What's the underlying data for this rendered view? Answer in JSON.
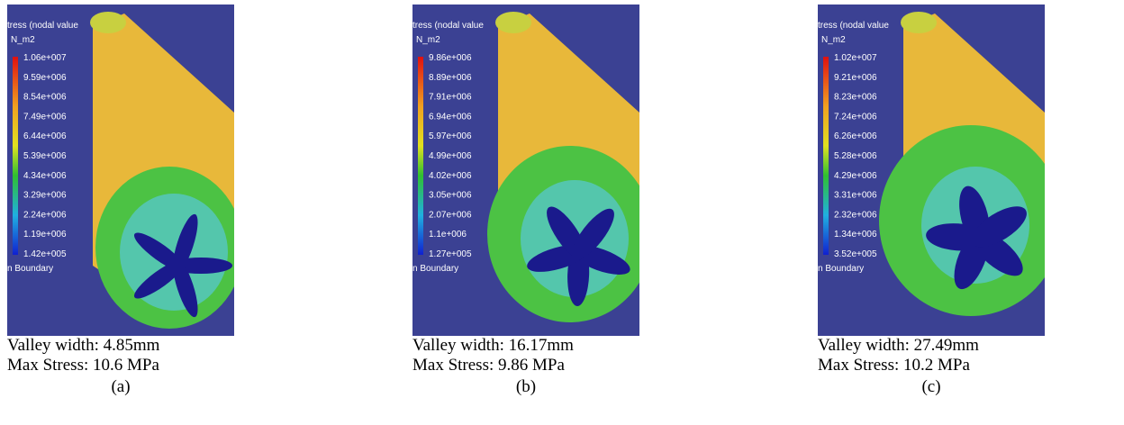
{
  "panels": [
    {
      "legend_title": "tress (nodal value",
      "legend_unit": "N_m2",
      "legend_values": [
        "1.06e+007",
        "9.59e+006",
        "8.54e+006",
        "7.49e+006",
        "6.44e+006",
        "5.39e+006",
        "4.34e+006",
        "3.29e+006",
        "2.24e+006",
        "1.19e+006",
        "1.42e+005"
      ],
      "boundary": "n Boundary",
      "caption_width": "Valley width: 4.85mm",
      "caption_stress": "Max Stress: 10.6 MPa",
      "label": "(a)"
    },
    {
      "legend_title": "tress (nodal value",
      "legend_unit": "N_m2",
      "legend_values": [
        "9.86e+006",
        "8.89e+006",
        "7.91e+006",
        "6.94e+006",
        "5.97e+006",
        "4.99e+006",
        "4.02e+006",
        "3.05e+006",
        "2.07e+006",
        "1.1e+006",
        "1.27e+005"
      ],
      "boundary": "n Boundary",
      "caption_width": "Valley width: 16.17mm",
      "caption_stress": "Max Stress: 9.86 MPa",
      "label": "(b)"
    },
    {
      "legend_title": "tress (nodal value",
      "legend_unit": "N_m2",
      "legend_values": [
        "1.02e+007",
        "9.21e+006",
        "8.23e+006",
        "7.24e+006",
        "6.26e+006",
        "5.28e+006",
        "4.29e+006",
        "3.31e+006",
        "2.32e+006",
        "1.34e+006",
        "3.52e+005"
      ],
      "boundary": "n Boundary",
      "caption_width": "Valley width: 27.49mm",
      "caption_stress": "Max Stress: 10.2 MPa",
      "label": "(c)"
    }
  ]
}
